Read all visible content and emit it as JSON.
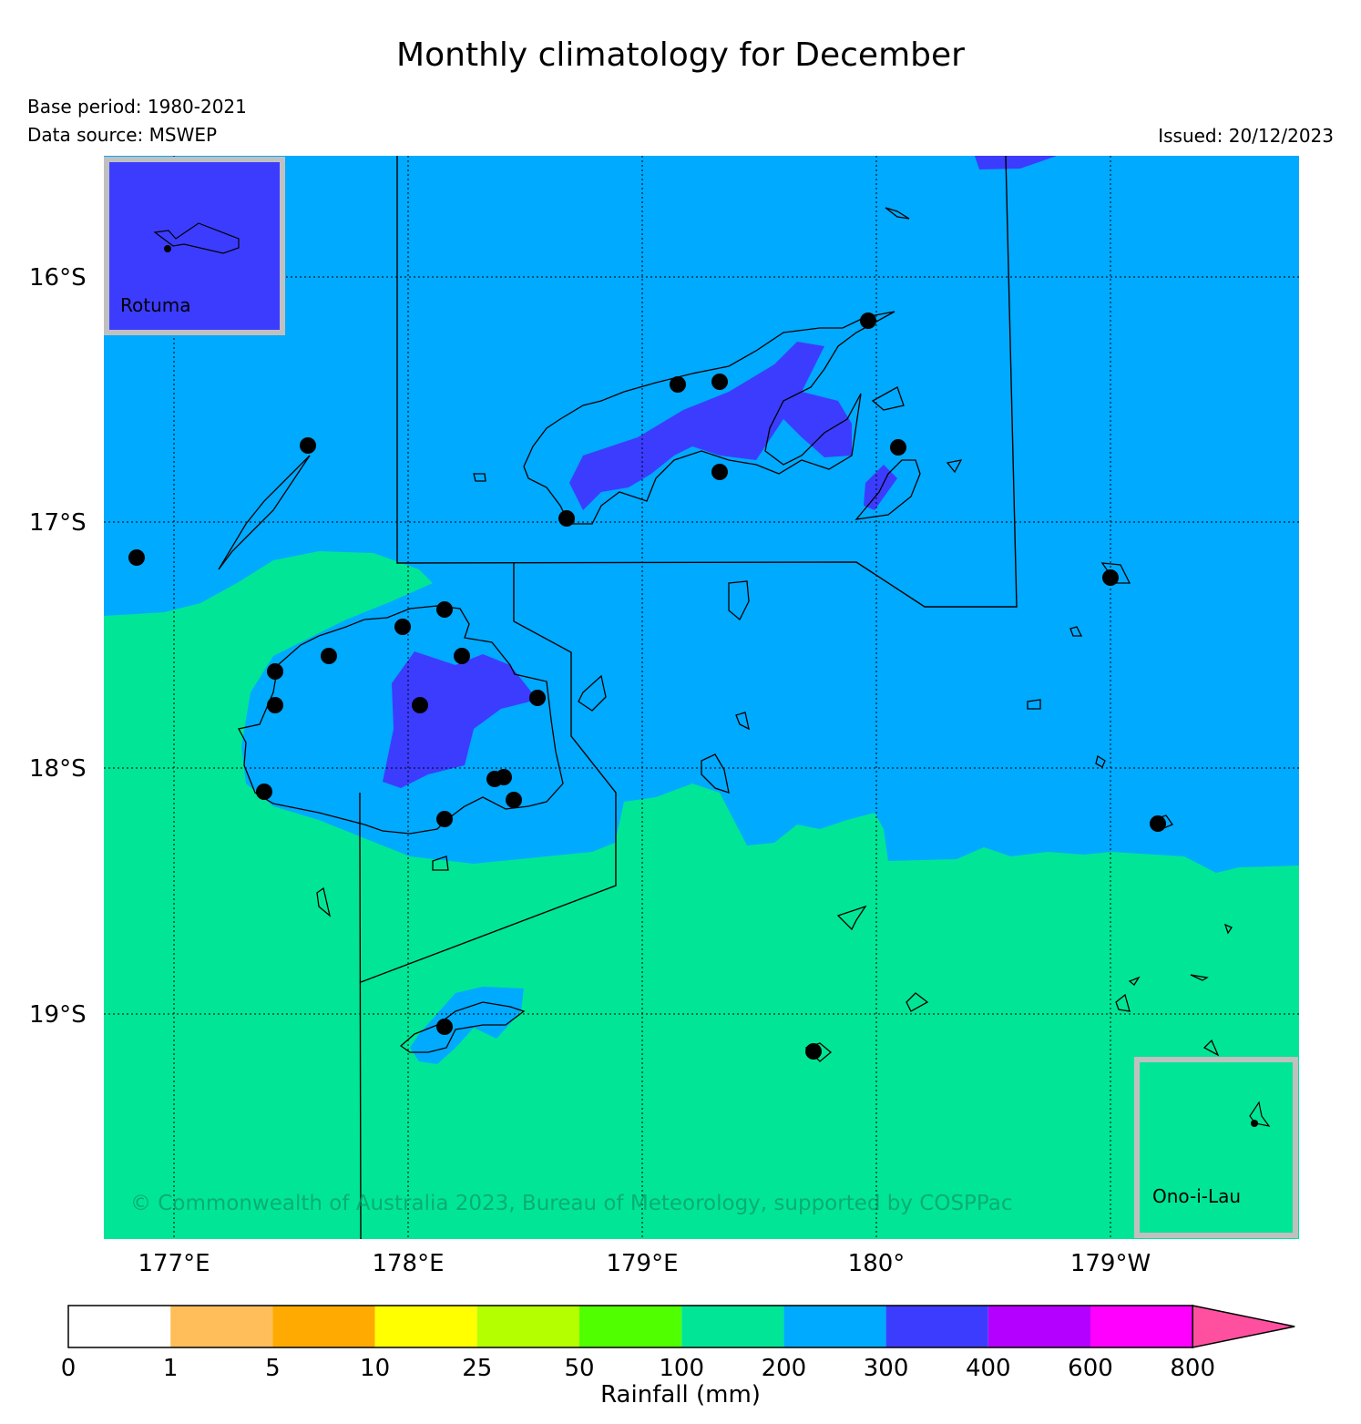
{
  "title": "Monthly climatology for December",
  "base_period": "Base period: 1980-2021",
  "data_source": "Data source: MSWEP",
  "issued": "Issued: 20/12/2023",
  "copyright": "© Commonwealth of Australia 2023, Bureau of Meteorology, supported by COSPPac",
  "lat_labels": [
    "16°S",
    "17°S",
    "18°S",
    "19°S"
  ],
  "lon_labels": [
    "177°E",
    "178°E",
    "179°E",
    "180°",
    "179°W"
  ],
  "insets": {
    "rotuma": {
      "label": "Rotuma",
      "color": "#3c3cff"
    },
    "ono": {
      "label": "Ono-i-Lau",
      "color": "#00e696"
    }
  },
  "colorbar": {
    "label": "Rainfall (mm)",
    "ticks": [
      "0",
      "1",
      "5",
      "10",
      "25",
      "50",
      "100",
      "200",
      "300",
      "400",
      "600",
      "800"
    ],
    "colors": [
      "#ffffff",
      "#ffbe5a",
      "#ffaa00",
      "#ffff00",
      "#b4ff00",
      "#50ff00",
      "#00e696",
      "#00aaff",
      "#3c3cff",
      "#b400ff",
      "#ff00ff",
      "#ff50a0"
    ]
  },
  "fill_colors": {
    "low": "#00e696",
    "mid": "#00aaff",
    "high": "#3c3cff"
  }
}
